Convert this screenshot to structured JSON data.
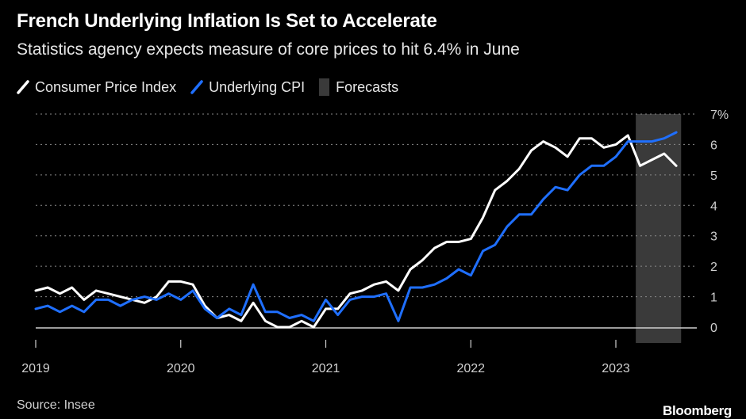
{
  "chart_data": {
    "type": "line",
    "title": "French Underlying Inflation Is Set to Accelerate",
    "subtitle": "Statistics agency expects measure of core prices to hit 6.4% in June",
    "source": "Source: Insee",
    "brand": "Bloomberg",
    "legend": {
      "cpi": "Consumer Price Index",
      "core": "Underlying CPI",
      "forecast": "Forecasts"
    },
    "x_start": "2019-01",
    "x_ticks": [
      "2019",
      "2020",
      "2021",
      "2022",
      "2023"
    ],
    "y_ticks": [
      "0",
      "1",
      "2",
      "3",
      "4",
      "5",
      "6",
      "7%"
    ],
    "ylim": [
      0,
      7
    ],
    "forecast_range": [
      "2023-03",
      "2023-06"
    ],
    "colors": {
      "cpi": "#ffffff",
      "core": "#1f6fff",
      "forecast": "#3a3a3a",
      "grid": "#8a8a8a",
      "axis": "#d0d0d0"
    },
    "series": [
      {
        "name": "Consumer Price Index",
        "key": "cpi",
        "values": [
          1.2,
          1.3,
          1.1,
          1.3,
          0.9,
          1.2,
          1.1,
          1.0,
          0.9,
          0.8,
          1.0,
          1.5,
          1.5,
          1.4,
          0.7,
          0.3,
          0.4,
          0.2,
          0.8,
          0.2,
          0.0,
          0.0,
          0.2,
          0.0,
          0.6,
          0.6,
          1.1,
          1.2,
          1.4,
          1.5,
          1.2,
          1.9,
          2.2,
          2.6,
          2.8,
          2.8,
          2.9,
          3.6,
          4.5,
          4.8,
          5.2,
          5.8,
          6.1,
          5.9,
          5.6,
          6.2,
          6.2,
          5.9,
          6.0,
          6.3,
          5.3,
          5.5,
          5.7,
          5.3
        ]
      },
      {
        "name": "Underlying CPI",
        "key": "core",
        "values": [
          0.6,
          0.7,
          0.5,
          0.7,
          0.5,
          0.9,
          0.9,
          0.7,
          0.9,
          1.0,
          0.9,
          1.1,
          0.9,
          1.2,
          0.6,
          0.3,
          0.6,
          0.4,
          1.4,
          0.5,
          0.5,
          0.3,
          0.4,
          0.2,
          0.9,
          0.4,
          0.9,
          1.0,
          1.0,
          1.1,
          0.2,
          1.3,
          1.3,
          1.4,
          1.6,
          1.9,
          1.7,
          2.5,
          2.7,
          3.3,
          3.7,
          3.7,
          4.2,
          4.6,
          4.5,
          5.0,
          5.3,
          5.3,
          5.6,
          6.1,
          6.1,
          6.1,
          6.2,
          6.4
        ]
      }
    ]
  }
}
